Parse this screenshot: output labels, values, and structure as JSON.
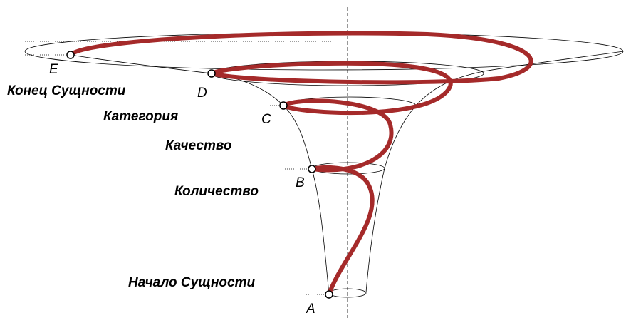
{
  "points": [
    {
      "label": "A"
    },
    {
      "label": "B"
    },
    {
      "label": "C"
    },
    {
      "label": "D"
    },
    {
      "label": "E"
    }
  ],
  "stages": [
    {
      "label": "Начало Сущности"
    },
    {
      "label": "Количество"
    },
    {
      "label": "Качество"
    },
    {
      "label": "Категория"
    },
    {
      "label": "Конец Сущности"
    }
  ]
}
